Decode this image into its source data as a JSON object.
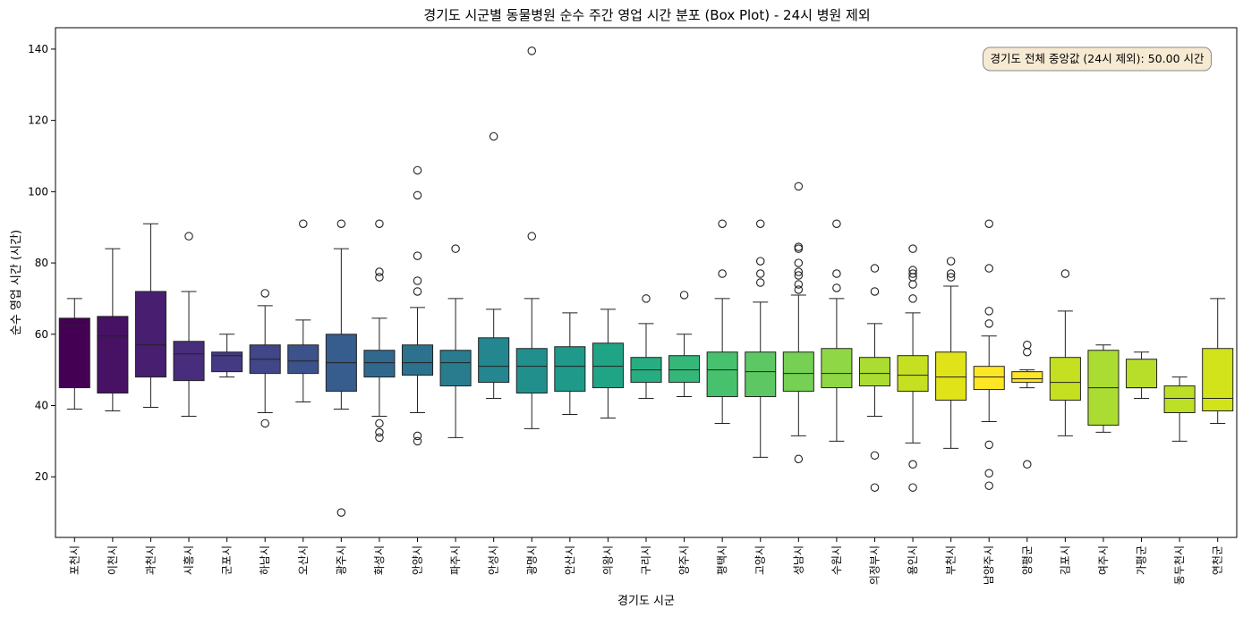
{
  "chart_data": {
    "type": "box",
    "title": "경기도 시군별 동물병원 순수 주간 영업 시간 분포 (Box Plot) - 24시 병원 제외",
    "xlabel": "경기도 시군",
    "ylabel": "순수 영업 시간 (시간)",
    "ylim": [
      3,
      146
    ],
    "yticks": [
      20,
      40,
      60,
      80,
      100,
      120,
      140
    ],
    "annotation": "경기도 전체 중앙값 (24시 제외): 50.00 시간",
    "grid": false,
    "palette": "viridis",
    "categories": [
      "포천시",
      "이천시",
      "과천시",
      "시흥시",
      "군포시",
      "하남시",
      "오산시",
      "광주시",
      "화성시",
      "안양시",
      "파주시",
      "안성시",
      "광명시",
      "안산시",
      "의왕시",
      "구리시",
      "양주시",
      "평택시",
      "고양시",
      "성남시",
      "수원시",
      "의정부시",
      "용인시",
      "부천시",
      "남양주시",
      "양평군",
      "김포시",
      "여주시",
      "가평군",
      "동두천시",
      "연천군"
    ],
    "boxes": [
      {
        "min": 39,
        "q1": 45,
        "median": 62.5,
        "q3": 64.5,
        "max": 70,
        "outliers": []
      },
      {
        "min": 38.5,
        "q1": 43.5,
        "median": 59.5,
        "q3": 65,
        "max": 84,
        "outliers": []
      },
      {
        "min": 39.5,
        "q1": 48,
        "median": 57,
        "q3": 72,
        "max": 91,
        "outliers": []
      },
      {
        "min": 37,
        "q1": 47,
        "median": 54.5,
        "q3": 58,
        "max": 72,
        "outliers": [
          87.5
        ]
      },
      {
        "min": 48,
        "q1": 49.5,
        "median": 54,
        "q3": 55,
        "max": 60,
        "outliers": []
      },
      {
        "min": 38,
        "q1": 49,
        "median": 53,
        "q3": 57,
        "max": 68,
        "outliers": [
          71.5,
          35
        ]
      },
      {
        "min": 41,
        "q1": 49,
        "median": 52.5,
        "q3": 57,
        "max": 64,
        "outliers": [
          91
        ]
      },
      {
        "min": 39,
        "q1": 44,
        "median": 52,
        "q3": 60,
        "max": 84,
        "outliers": [
          91,
          10
        ]
      },
      {
        "min": 37,
        "q1": 48,
        "median": 52,
        "q3": 55.5,
        "max": 64.5,
        "outliers": [
          91,
          77.5,
          76,
          35,
          32.5,
          31
        ]
      },
      {
        "min": 38,
        "q1": 48.5,
        "median": 52,
        "q3": 57,
        "max": 67.5,
        "outliers": [
          106,
          99,
          82,
          75,
          72,
          31.5,
          30
        ]
      },
      {
        "min": 31,
        "q1": 45.5,
        "median": 52,
        "q3": 55.5,
        "max": 70,
        "outliers": [
          84
        ]
      },
      {
        "min": 42,
        "q1": 46.5,
        "median": 51,
        "q3": 59,
        "max": 67,
        "outliers": [
          115.5
        ]
      },
      {
        "min": 33.5,
        "q1": 43.5,
        "median": 51,
        "q3": 56,
        "max": 70,
        "outliers": [
          139.5,
          87.5
        ]
      },
      {
        "min": 37.5,
        "q1": 44,
        "median": 51,
        "q3": 56.5,
        "max": 66,
        "outliers": []
      },
      {
        "min": 36.5,
        "q1": 45,
        "median": 51,
        "q3": 57.5,
        "max": 67,
        "outliers": []
      },
      {
        "min": 42,
        "q1": 46.5,
        "median": 50,
        "q3": 53.5,
        "max": 63,
        "outliers": [
          70
        ]
      },
      {
        "min": 42.5,
        "q1": 46.5,
        "median": 50,
        "q3": 54,
        "max": 60,
        "outliers": [
          71
        ]
      },
      {
        "min": 35,
        "q1": 42.5,
        "median": 50,
        "q3": 55,
        "max": 70,
        "outliers": [
          91,
          77
        ]
      },
      {
        "min": 25.5,
        "q1": 42.5,
        "median": 49.5,
        "q3": 55,
        "max": 69,
        "outliers": [
          91,
          80.5,
          77,
          74.5
        ]
      },
      {
        "min": 31.5,
        "q1": 44,
        "median": 49,
        "q3": 55,
        "max": 71,
        "outliers": [
          101.5,
          84.5,
          84,
          80,
          77.5,
          76.5,
          74,
          72.5,
          25
        ]
      },
      {
        "min": 30,
        "q1": 45,
        "median": 49,
        "q3": 56,
        "max": 70,
        "outliers": [
          91,
          77,
          73
        ]
      },
      {
        "min": 37,
        "q1": 45.5,
        "median": 49,
        "q3": 53.5,
        "max": 63,
        "outliers": [
          78.5,
          72,
          26,
          17
        ]
      },
      {
        "min": 29.5,
        "q1": 44,
        "median": 48.5,
        "q3": 54,
        "max": 66,
        "outliers": [
          84,
          78,
          77,
          76,
          74,
          70,
          23.5,
          17
        ]
      },
      {
        "min": 28,
        "q1": 41.5,
        "median": 48,
        "q3": 55,
        "max": 73.5,
        "outliers": [
          80.5,
          77,
          76
        ]
      },
      {
        "min": 35.5,
        "q1": 44.5,
        "median": 48,
        "q3": 51,
        "max": 59.5,
        "outliers": [
          91,
          78.5,
          66.5,
          63,
          29,
          21,
          17.5
        ]
      },
      {
        "min": 45,
        "q1": 46.5,
        "median": 47.5,
        "q3": 49.5,
        "max": 50,
        "outliers": [
          57,
          55,
          23.5
        ]
      },
      {
        "min": 31.5,
        "q1": 41.5,
        "median": 46.5,
        "q3": 53.5,
        "max": 66.5,
        "outliers": [
          77
        ]
      },
      {
        "min": 32.5,
        "q1": 34.5,
        "median": 45,
        "q3": 55.5,
        "max": 57,
        "outliers": []
      },
      {
        "min": 42,
        "q1": 45,
        "median": 45,
        "q3": 53,
        "max": 55,
        "outliers": []
      },
      {
        "min": 30,
        "q1": 38,
        "median": 42,
        "q3": 45.5,
        "max": 48,
        "outliers": []
      },
      {
        "min": 35,
        "q1": 38.5,
        "median": 42,
        "q3": 56,
        "max": 70,
        "outliers": []
      }
    ],
    "colors": [
      "#440154",
      "#471164",
      "#481f70",
      "#472d7b",
      "#443a83",
      "#404688",
      "#3b528b",
      "#365d8d",
      "#31688e",
      "#2c728e",
      "#287c8e",
      "#24868e",
      "#21908d",
      "#1f9a8a",
      "#20a486",
      "#27ad81",
      "#35b779",
      "#47c16e",
      "#5dc863",
      "#75d054",
      "#8fd744",
      "#aadc32",
      "#c5e021",
      "#dfe318",
      "#fde725",
      "#fde725",
      "#c5e021",
      "#aadc32",
      "#b8de29",
      "#bddf26",
      "#d2e21b"
    ]
  }
}
